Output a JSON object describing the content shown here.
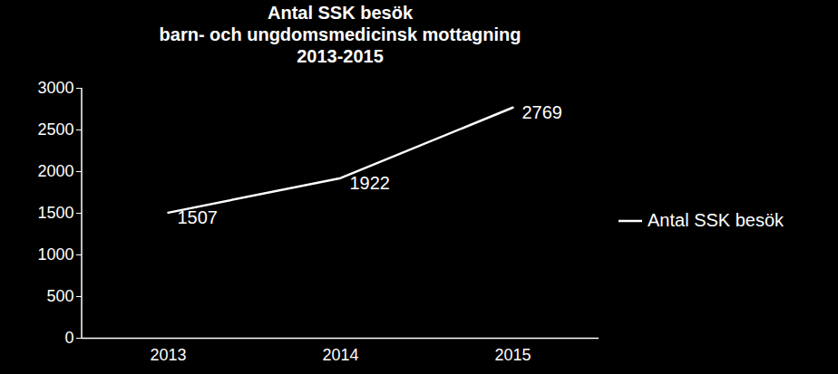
{
  "chart_data": {
    "type": "line",
    "title": "Antal SSK besök",
    "subtitle": [
      "barn- och ungdomsmedicinsk mottagning",
      "2013-2015"
    ],
    "categories": [
      "2013",
      "2014",
      "2015"
    ],
    "series": [
      {
        "name": "Antal SSK besök",
        "color": "#ffffff",
        "values": [
          1507,
          1922,
          2769
        ]
      }
    ],
    "ylim": [
      0,
      3000
    ],
    "yticks": [
      0,
      500,
      1000,
      1500,
      2000,
      2500,
      3000
    ],
    "grid": false,
    "legend": "right",
    "data_labels": true
  }
}
